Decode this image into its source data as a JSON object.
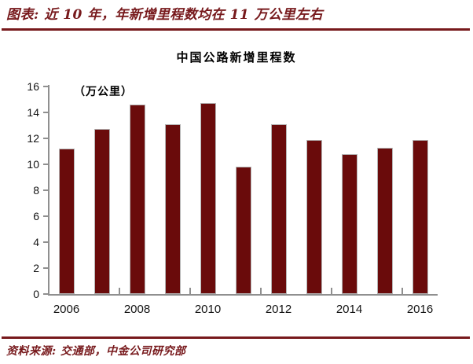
{
  "header": {
    "title": "图表:  近 10 年，年新增里程数均在 11 万公里左右"
  },
  "footer": {
    "source": "资料来源:  交通部，中金公司研究部"
  },
  "colors": {
    "accent_dark_red": "#77191c",
    "bar_fill": "#6a0b0b",
    "bar_border": "#b5b5b5",
    "axis_gray": "#8f8f8f",
    "tick_text": "#141414"
  },
  "chart_data": {
    "type": "bar",
    "title": "中国公路新增里程数",
    "unit_label": "（万公里）",
    "xlabel": "",
    "ylabel": "万公里",
    "categories": [
      2006,
      2007,
      2008,
      2009,
      2010,
      2011,
      2012,
      2013,
      2014,
      2015,
      2016
    ],
    "values": [
      11.2,
      12.7,
      14.6,
      13.1,
      14.7,
      9.8,
      13.1,
      11.9,
      10.8,
      11.3,
      11.9
    ],
    "x_tick_labels": [
      "2006",
      "2008",
      "2010",
      "2012",
      "2014",
      "2016"
    ],
    "ylim": [
      0,
      16
    ],
    "y_tick_step": 2,
    "grid": false,
    "legend": "none"
  }
}
